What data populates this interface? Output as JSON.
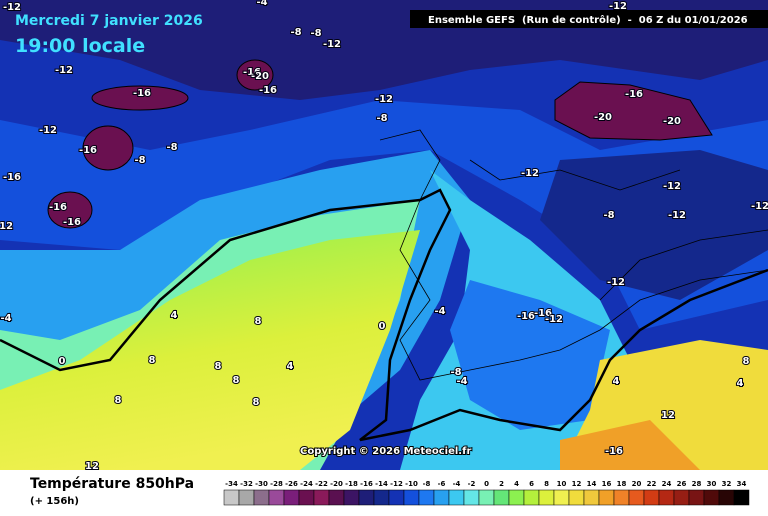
{
  "header": {
    "date": "Mercredi 7 janvier 2026",
    "time": "19:00 locale",
    "run": "Ensemble GEFS  (Run de contrôle)  -  06 Z du 01/01/2026"
  },
  "map": {
    "copyright": "Copyright © 2026 Meteociel.fr",
    "contour_labels": [
      "-12",
      "-4",
      "-8",
      "-8",
      "-12",
      "-12",
      "-16",
      "-16",
      "-20",
      "-16",
      "-12",
      "-8",
      "-12",
      "-16",
      "-8",
      "-8",
      "-16",
      "-16",
      "-16",
      "-12",
      "-12",
      "-16",
      "-20",
      "-20",
      "-12",
      "-12",
      "-8",
      "-12",
      "-12",
      "-12",
      "-4",
      "-16",
      "-16",
      "-12",
      "0",
      "4",
      "8",
      "-4",
      "0",
      "8",
      "8",
      "4",
      "8",
      "8",
      "-8",
      "-4",
      "4",
      "8",
      "4",
      "8",
      "12",
      "-16",
      "12"
    ]
  },
  "footer": {
    "title": "Température 850hPa",
    "lead": "(+ 156h)"
  },
  "scale": {
    "values": [
      -34,
      -32,
      -30,
      -28,
      -26,
      -24,
      -22,
      -20,
      -18,
      -16,
      -14,
      -12,
      -10,
      -8,
      -6,
      -4,
      -2,
      0,
      2,
      4,
      6,
      8,
      10,
      12,
      14,
      16,
      18,
      20,
      22,
      24,
      26,
      28,
      30,
      32,
      34
    ],
    "colors": [
      "#c8c8c8",
      "#a8a8a8",
      "#8c6e8c",
      "#9a4a9a",
      "#7a1e7a",
      "#6a1050",
      "#8a1a5a",
      "#5a1050",
      "#3c1464",
      "#1e1e78",
      "#14288c",
      "#1432b4",
      "#1450dc",
      "#1e78f0",
      "#28a0f0",
      "#3cc8f0",
      "#64e6e6",
      "#78f0b4",
      "#64e678",
      "#8cf050",
      "#b4f03c",
      "#dcf03c",
      "#f0f050",
      "#f0dc3c",
      "#f0c83c",
      "#f0a028",
      "#f08228",
      "#e65a1e",
      "#d23c14",
      "#b42814",
      "#961e14",
      "#781414",
      "#500a0a",
      "#280505",
      "#000000"
    ]
  }
}
